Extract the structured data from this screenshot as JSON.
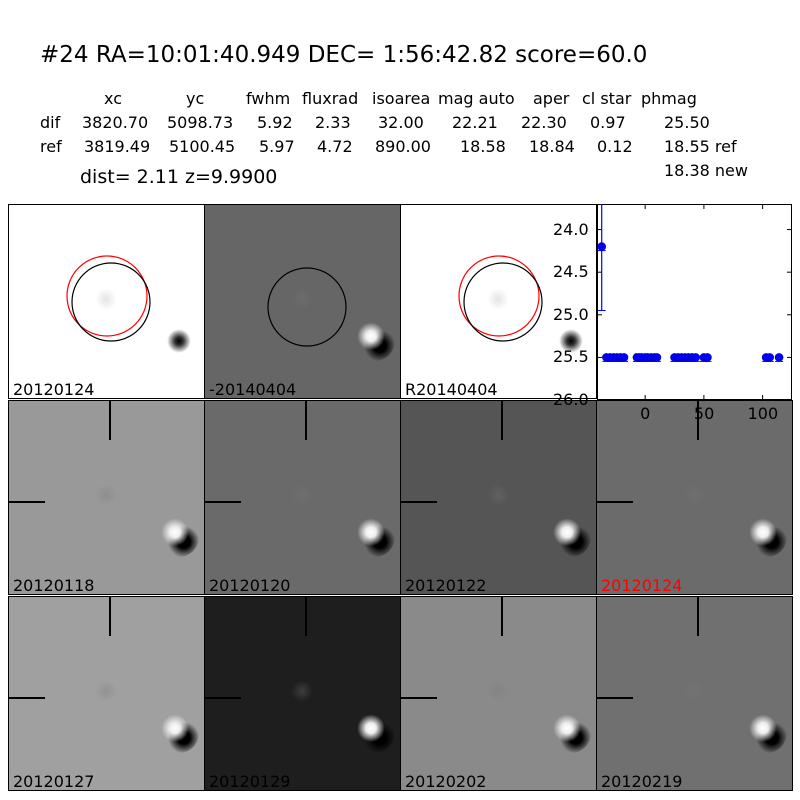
{
  "title": "#24   RA=10:01:40.949 DEC= 1:56:42.82      score=60.0",
  "table": {
    "headers": [
      "xc",
      "yc",
      "fwhm",
      "fluxrad",
      "isoarea",
      "mag auto",
      "aper",
      "cl star",
      "phmag"
    ],
    "rows": [
      {
        "name": "dif",
        "values": [
          "3820.70",
          "5098.73",
          "5.92",
          "2.33",
          "32.00",
          "22.21",
          "22.30",
          "0.97",
          "25.50"
        ]
      },
      {
        "name": "ref",
        "values": [
          "3819.49",
          "5100.45",
          "5.97",
          "4.72",
          "890.00",
          "18.58",
          "18.84",
          "0.12",
          "18.55 ref"
        ]
      }
    ],
    "extra": "18.38 new"
  },
  "dist": "dist=  2.11      z=9.9900",
  "stamps": [
    {
      "label": "20120124",
      "bg": "#ffffff",
      "color": "#000000"
    },
    {
      "label": "-20140404",
      "bg": "#666666",
      "color": "#000000"
    },
    {
      "label": "R20140404",
      "bg": "#ffffff",
      "color": "#000000"
    },
    {
      "label": "20120118",
      "bg": "#999999",
      "color": "#000000"
    },
    {
      "label": "20120120",
      "bg": "#6a6a6a",
      "color": "#000000"
    },
    {
      "label": "20120122",
      "bg": "#555555",
      "color": "#000000"
    },
    {
      "label": "20120124",
      "bg": "#6b6b6b",
      "color": "#ff0000"
    },
    {
      "label": "20120127",
      "bg": "#a0a0a0",
      "color": "#000000"
    },
    {
      "label": "20120129",
      "bg": "#1e1e1e",
      "color": "#000000"
    },
    {
      "label": "20120202",
      "bg": "#8a8a8a",
      "color": "#000000"
    },
    {
      "label": "20120219",
      "bg": "#707070",
      "color": "#000000"
    }
  ],
  "chart_data": {
    "type": "scatter",
    "xlim": [
      -41,
      125
    ],
    "ylim": [
      26.0,
      23.7
    ],
    "y_inverted": true,
    "xticks": [
      "0",
      "50",
      "100"
    ],
    "yticks": [
      "24.0",
      "24.5",
      "25.0",
      "25.5",
      "26.0"
    ],
    "color": "#0000ff",
    "points": [
      {
        "x": -37,
        "y": 24.2,
        "err_low": 24.95,
        "err_high": 23.7
      },
      {
        "x": -33,
        "y": 25.5
      },
      {
        "x": -30,
        "y": 25.5
      },
      {
        "x": -27,
        "y": 25.5
      },
      {
        "x": -24,
        "y": 25.5
      },
      {
        "x": -21,
        "y": 25.5
      },
      {
        "x": -18,
        "y": 25.5
      },
      {
        "x": -7,
        "y": 25.5
      },
      {
        "x": -5,
        "y": 25.5
      },
      {
        "x": -3,
        "y": 25.5
      },
      {
        "x": 0,
        "y": 25.5
      },
      {
        "x": 2,
        "y": 25.5
      },
      {
        "x": 5,
        "y": 25.5
      },
      {
        "x": 8,
        "y": 25.5
      },
      {
        "x": 10,
        "y": 25.5
      },
      {
        "x": 25,
        "y": 25.5
      },
      {
        "x": 28,
        "y": 25.5
      },
      {
        "x": 31,
        "y": 25.5
      },
      {
        "x": 34,
        "y": 25.5
      },
      {
        "x": 37,
        "y": 25.5
      },
      {
        "x": 40,
        "y": 25.5
      },
      {
        "x": 43,
        "y": 25.5
      },
      {
        "x": 50,
        "y": 25.5
      },
      {
        "x": 53,
        "y": 25.5
      },
      {
        "x": 103,
        "y": 25.5
      },
      {
        "x": 106,
        "y": 25.5
      },
      {
        "x": 114,
        "y": 25.5
      }
    ]
  }
}
